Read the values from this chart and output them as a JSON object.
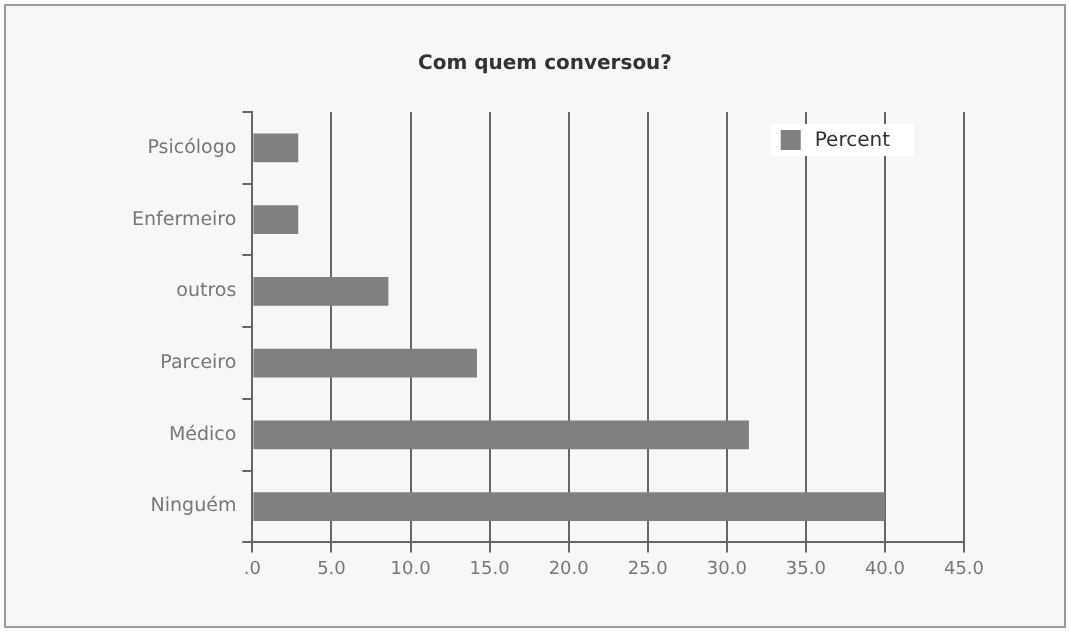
{
  "chart_data": {
    "type": "bar",
    "orientation": "horizontal",
    "title": "Com quem conversou?",
    "categories": [
      "Psicólogo",
      "Enfermeiro",
      "outros",
      "Parceiro",
      "Médico",
      "Ninguém"
    ],
    "series": [
      {
        "name": "Percent",
        "color": "#808080",
        "values": [
          2.9,
          2.9,
          8.6,
          14.2,
          31.4,
          40.0
        ]
      }
    ],
    "xlim": [
      0,
      45
    ],
    "xticks": [
      {
        "value": 0,
        "label": ".0"
      },
      {
        "value": 5,
        "label": "5.0"
      },
      {
        "value": 10,
        "label": "10.0"
      },
      {
        "value": 15,
        "label": "15.0"
      },
      {
        "value": 20,
        "label": "20.0"
      },
      {
        "value": 25,
        "label": "25.0"
      },
      {
        "value": 30,
        "label": "30.0"
      },
      {
        "value": 35,
        "label": "35.0"
      },
      {
        "value": 40,
        "label": "40.0"
      },
      {
        "value": 45,
        "label": "45.0"
      }
    ],
    "grid": "x",
    "legend": "top right"
  }
}
